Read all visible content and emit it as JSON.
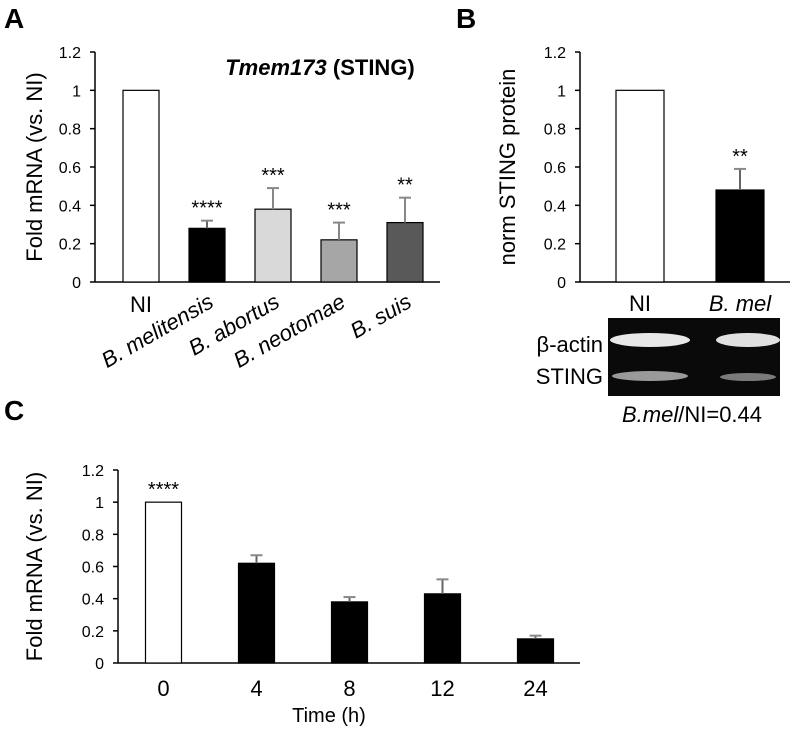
{
  "chart_data": [
    {
      "type": "bar",
      "panel": "A",
      "title": {
        "gene": "Tmem173",
        "protein": "(STING)"
      },
      "ylabel": "Fold mRNA (vs. NI)",
      "categories": [
        "NI",
        "B. melitensis",
        "B. abortus",
        "B. neotomae",
        "B. suis"
      ],
      "italic_categories": [
        false,
        true,
        true,
        true,
        true
      ],
      "values": [
        1,
        0.28,
        0.38,
        0.22,
        0.31
      ],
      "errors": [
        null,
        0.04,
        0.11,
        0.09,
        0.13
      ],
      "annotations": [
        null,
        "****",
        "***",
        "***",
        "**"
      ],
      "colors": [
        "#ffffff",
        "#000000",
        "#d9d9d9",
        "#a6a6a6",
        "#595959"
      ],
      "ylim": [
        0,
        1.2
      ],
      "yticks": [
        0,
        0.2,
        0.4,
        0.6,
        0.8,
        1,
        1.2
      ],
      "grid": false
    },
    {
      "type": "bar",
      "panel": "B",
      "ylabel": "norm STING protein",
      "categories": [
        "NI",
        "B. mel"
      ],
      "italic_categories": [
        false,
        true
      ],
      "values": [
        1,
        0.48
      ],
      "errors": [
        null,
        0.11
      ],
      "annotations": [
        null,
        "**"
      ],
      "colors": [
        "#ffffff",
        "#000000"
      ],
      "ylim": [
        0,
        1.2
      ],
      "yticks": [
        0,
        0.2,
        0.4,
        0.6,
        0.8,
        1,
        1.2
      ],
      "grid": false,
      "blot": {
        "labels": [
          "β-actin",
          "STING"
        ],
        "ratio_label": {
          "italic": "B.mel",
          "text": "/NI=0.44"
        }
      }
    },
    {
      "type": "bar",
      "panel": "C",
      "ylabel": "Fold mRNA (vs. NI)",
      "xlabel": "Time (h)",
      "categories": [
        "0",
        "4",
        "8",
        "12",
        "24"
      ],
      "italic_categories": [
        false,
        false,
        false,
        false,
        false
      ],
      "values": [
        1,
        0.62,
        0.38,
        0.43,
        0.15
      ],
      "errors": [
        null,
        0.05,
        0.03,
        0.09,
        0.02
      ],
      "annotations": [
        "****",
        null,
        null,
        null,
        null
      ],
      "colors": [
        "#ffffff",
        "#000000",
        "#000000",
        "#000000",
        "#000000"
      ],
      "ylim": [
        0,
        1.2
      ],
      "yticks": [
        0,
        0.2,
        0.4,
        0.6,
        0.8,
        1,
        1.2
      ],
      "grid": false
    }
  ]
}
